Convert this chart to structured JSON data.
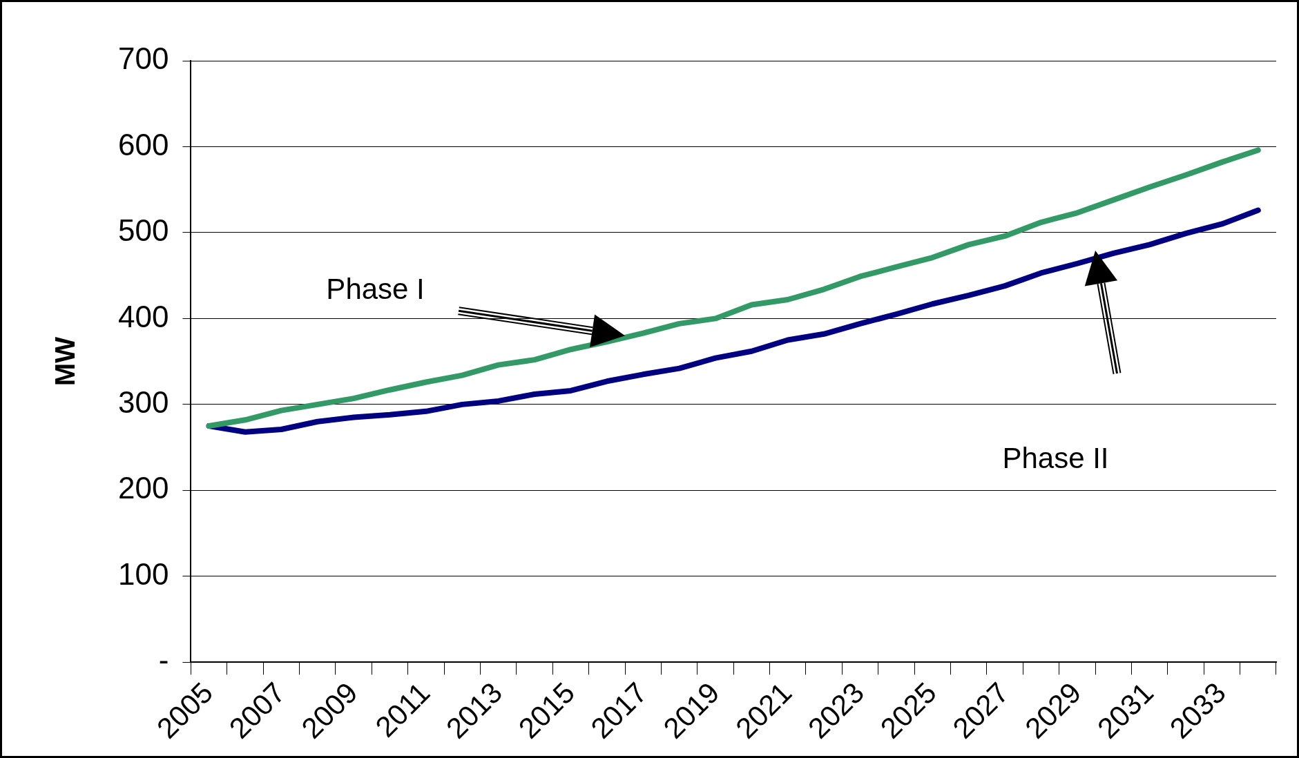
{
  "chart_data": {
    "type": "line",
    "ylabel": "MW",
    "categories": [
      "2005",
      null,
      "2007",
      null,
      "2009",
      null,
      "2011",
      null,
      "2013",
      null,
      "2015",
      null,
      "2017",
      null,
      "2019",
      null,
      "2021",
      null,
      "2023",
      null,
      "2025",
      null,
      "2027",
      null,
      "2029",
      null,
      "2031",
      null,
      "2033",
      null
    ],
    "series": [
      {
        "color": "#339966",
        "values": [
          275,
          282,
          293,
          300,
          307,
          317,
          326,
          334,
          346,
          352,
          364,
          373,
          383,
          394,
          400,
          416,
          422,
          434,
          449,
          460,
          471,
          486,
          496,
          512,
          523,
          538,
          553,
          567,
          582,
          596
        ]
      },
      {
        "color": "#000080",
        "values": [
          275,
          268,
          271,
          280,
          285,
          288,
          292,
          300,
          304,
          312,
          316,
          327,
          335,
          342,
          354,
          362,
          375,
          382,
          394,
          405,
          417,
          427,
          438,
          453,
          464,
          476,
          486,
          499,
          510,
          526
        ]
      }
    ],
    "ylim": [
      0,
      700
    ],
    "yticks": [
      {
        "value": 0,
        "label": "-"
      },
      100,
      200,
      300,
      400,
      500,
      600,
      700
    ],
    "annotations": [
      "Phase I",
      "Phase II"
    ],
    "grid": "y",
    "legend": false,
    "marker": "none",
    "line_style": "solid"
  }
}
